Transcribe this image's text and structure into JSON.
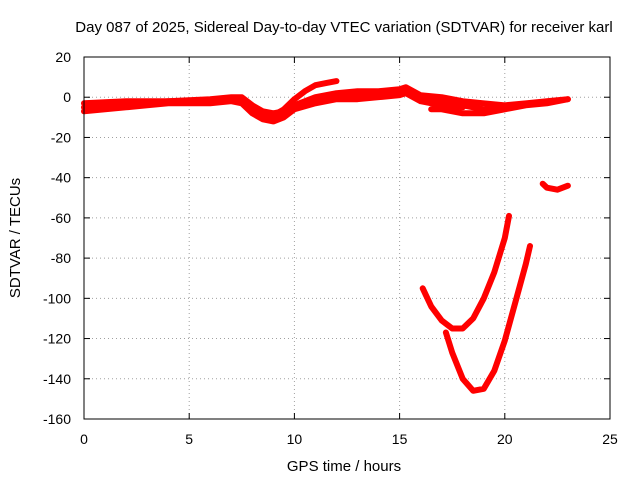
{
  "chart_data": {
    "type": "line",
    "title": "Day 087 of 2025, Sidereal Day-to-day VTEC variation (SDTVAR) for receiver karl",
    "xlabel": "GPS time / hours",
    "ylabel": "SDTVAR / TECUs",
    "xlim": [
      0,
      25
    ],
    "ylim": [
      -160,
      20
    ],
    "xticks": [
      0,
      5,
      10,
      15,
      20,
      25
    ],
    "yticks": [
      -160,
      -140,
      -120,
      -100,
      -80,
      -60,
      -40,
      -20,
      0,
      20
    ],
    "grid": true,
    "legend": "none",
    "color": "#ff0000",
    "series": [
      {
        "x": [
          0,
          1,
          2,
          3,
          4,
          5,
          6,
          7,
          7.5,
          8,
          8.5,
          9,
          9.5,
          10,
          11,
          12,
          13,
          14,
          15,
          15.3,
          16,
          17,
          18,
          19,
          20,
          21,
          22,
          23
        ],
        "y": [
          -5,
          -4,
          -3,
          -3,
          -2,
          -2,
          -2,
          -1,
          -2,
          -6,
          -9,
          -10,
          -8,
          -5,
          -2,
          0,
          1,
          1,
          3,
          4,
          0,
          -2,
          -4,
          -6,
          -4,
          -3,
          -2,
          -1
        ]
      },
      {
        "x": [
          0,
          1,
          2,
          3,
          4,
          5,
          6,
          7,
          7.5,
          8,
          8.5,
          9,
          9.5,
          10,
          11,
          12,
          13,
          14,
          15,
          15.3,
          16,
          17,
          18
        ],
        "y": [
          -7,
          -6,
          -5,
          -4,
          -3,
          -3,
          -3,
          -2,
          -3,
          -8,
          -11,
          -12,
          -10,
          -6,
          -3,
          -1,
          -1,
          0,
          1,
          2,
          -2,
          -4,
          -5
        ]
      },
      {
        "x": [
          0,
          2,
          4,
          6,
          7,
          7.5,
          8,
          8.5,
          9,
          9.5,
          10,
          11,
          12,
          13,
          14,
          15,
          15.3,
          16,
          17,
          18,
          19,
          20
        ],
        "y": [
          -3,
          -2,
          -2,
          -1,
          0,
          0,
          -4,
          -7,
          -8,
          -7,
          -4,
          0,
          2,
          3,
          3,
          4,
          5,
          1,
          0,
          -2,
          -3,
          -4
        ]
      },
      {
        "x": [
          8.5,
          9,
          9.5,
          10,
          10.5,
          11,
          11.5,
          12
        ],
        "y": [
          -9,
          -9,
          -6,
          -1,
          3,
          6,
          7,
          8
        ]
      },
      {
        "x": [
          16.5,
          17,
          18,
          19,
          20,
          21,
          22,
          23
        ],
        "y": [
          -6,
          -6,
          -8,
          -8,
          -6,
          -4,
          -3,
          -1
        ]
      },
      {
        "x": [
          16.1,
          16.5,
          17,
          17.5,
          18,
          18.5,
          19,
          19.5,
          20,
          20.2
        ],
        "y": [
          -95,
          -104,
          -111,
          -115,
          -115,
          -110,
          -100,
          -87,
          -70,
          -59
        ]
      },
      {
        "x": [
          17.2,
          17.5,
          18,
          18.5,
          19,
          19.5,
          20,
          20.5,
          21,
          21.2
        ],
        "y": [
          -117,
          -127,
          -140,
          -146,
          -145,
          -136,
          -121,
          -102,
          -83,
          -74
        ]
      },
      {
        "x": [
          21.8,
          22,
          22.5,
          23
        ],
        "y": [
          -43,
          -45,
          -46,
          -44
        ]
      }
    ]
  }
}
